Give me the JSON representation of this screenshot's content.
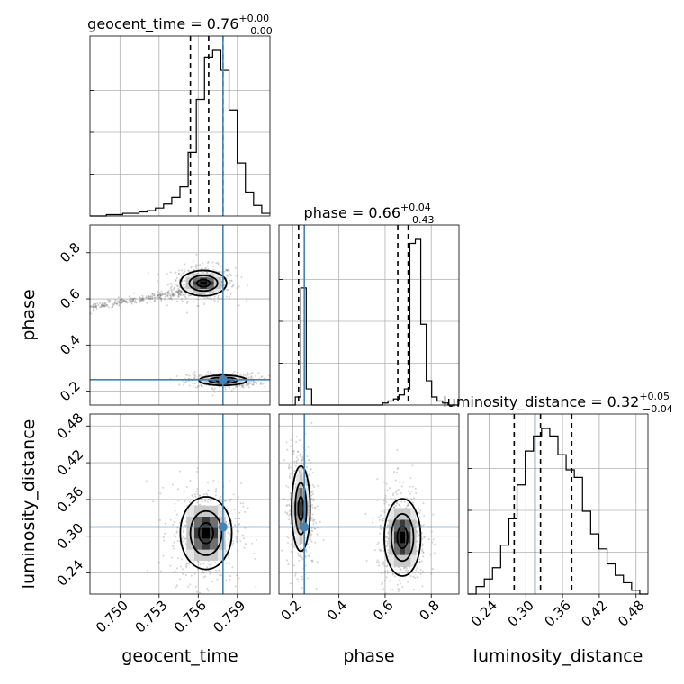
{
  "chart_data": {
    "type": "corner",
    "parameters": [
      "geocent_time",
      "phase",
      "luminosity_distance"
    ],
    "truths": {
      "geocent_time": 0.7579,
      "phase": 0.25,
      "luminosity_distance": 0.315
    },
    "axis_ranges": {
      "geocent_time": [
        0.7477,
        0.7615
      ],
      "phase": [
        0.14,
        0.92
      ],
      "luminosity_distance": [
        0.2055,
        0.4995
      ]
    },
    "ticks": {
      "geocent_time": {
        "values": [
          0.75,
          0.753,
          0.756,
          0.759
        ],
        "labels": [
          "0.750",
          "0.753",
          "0.756",
          "0.759"
        ]
      },
      "phase": {
        "values": [
          0.2,
          0.4,
          0.6,
          0.8
        ],
        "labels": [
          "0.2",
          "0.4",
          "0.6",
          "0.8"
        ]
      },
      "luminosity_distance": {
        "values": [
          0.24,
          0.3,
          0.36,
          0.42,
          0.48
        ],
        "labels": [
          "0.24",
          "0.30",
          "0.36",
          "0.42",
          "0.48"
        ]
      }
    },
    "axis_labels": {
      "geocent_time": "geocent_time",
      "phase": "phase",
      "luminosity_distance": "luminosity_distance"
    },
    "titles": [
      {
        "param": "geocent_time",
        "text": "geocent_time = 0.76",
        "sup": "+0.00",
        "sub": "−0.00"
      },
      {
        "param": "phase",
        "text": "phase = 0.66",
        "sup": "+0.04",
        "sub": "−0.43"
      },
      {
        "param": "luminosity_distance",
        "text": "luminosity_distance = 0.32",
        "sup": "+0.05",
        "sub": "−0.04"
      }
    ],
    "quantiles": {
      "geocent_time": [
        0.7554,
        0.7568,
        0.7579
      ],
      "phase": [
        0.225,
        0.655,
        0.7
      ],
      "luminosity_distance": [
        0.281,
        0.324,
        0.375
      ]
    },
    "histograms": {
      "geocent_time": {
        "range": [
          0.7477,
          0.7615
        ],
        "counts": [
          0,
          0,
          1,
          1,
          2,
          2,
          3,
          4,
          6,
          9,
          14,
          22,
          48,
          88,
          120,
          125,
          110,
          80,
          40,
          18,
          8,
          2
        ]
      },
      "phase": {
        "range": [
          0.14,
          0.92
        ],
        "counts": [
          0,
          0,
          0,
          4,
          58,
          8,
          0,
          0,
          0,
          0,
          0,
          0,
          0,
          0,
          0,
          0,
          0,
          0,
          0,
          1,
          2,
          3,
          5,
          8,
          80,
          82,
          40,
          12,
          4,
          2,
          1,
          0,
          0
        ]
      },
      "luminosity_distance": {
        "range": [
          0.2055,
          0.4995
        ],
        "counts": [
          0,
          2,
          4,
          7,
          13,
          20,
          29,
          38,
          42,
          44,
          42,
          37,
          33,
          31,
          22,
          16,
          12,
          8,
          5,
          3,
          1,
          0
        ]
      }
    },
    "density_modes": [
      {
        "pair": [
          "geocent_time",
          "phase"
        ],
        "center": [
          0.7564,
          0.668
        ],
        "spread": [
          0.0009,
          0.028
        ],
        "peak": 1.0,
        "levels": [
          0.2,
          0.55,
          0.88
        ]
      },
      {
        "pair": [
          "geocent_time",
          "phase"
        ],
        "center": [
          0.7579,
          0.247
        ],
        "spread": [
          0.001,
          0.012
        ],
        "peak": 0.9,
        "levels": [
          0.25,
          0.62,
          0.9
        ]
      },
      {
        "pair": [
          "geocent_time",
          "luminosity_distance"
        ],
        "center": [
          0.7566,
          0.305
        ],
        "spread": [
          0.001,
          0.03
        ],
        "peak": 1.0,
        "levels": [
          0.2,
          0.55,
          0.88
        ]
      },
      {
        "pair": [
          "phase",
          "luminosity_distance"
        ],
        "center": [
          0.235,
          0.345
        ],
        "spread": [
          0.022,
          0.038
        ],
        "peak": 0.8,
        "levels": [
          0.25,
          0.6,
          0.9
        ]
      },
      {
        "pair": [
          "phase",
          "luminosity_distance"
        ],
        "center": [
          0.675,
          0.298
        ],
        "spread": [
          0.04,
          0.032
        ],
        "peak": 1.0,
        "levels": [
          0.2,
          0.55,
          0.88
        ]
      }
    ],
    "colors": {
      "truth": "#4682b4",
      "points": "#808080",
      "density": "#000000"
    }
  }
}
